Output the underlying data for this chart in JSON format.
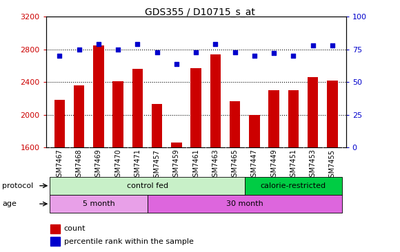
{
  "title": "GDS355 / D10715_s_at",
  "samples": [
    "GSM7467",
    "GSM7468",
    "GSM7469",
    "GSM7470",
    "GSM7471",
    "GSM7457",
    "GSM7459",
    "GSM7461",
    "GSM7463",
    "GSM7465",
    "GSM7447",
    "GSM7449",
    "GSM7451",
    "GSM7453",
    "GSM7455"
  ],
  "counts": [
    2180,
    2360,
    2850,
    2410,
    2560,
    2130,
    1660,
    2570,
    2740,
    2170,
    2000,
    2300,
    2300,
    2460,
    2420
  ],
  "percentiles": [
    70,
    75,
    79,
    75,
    79,
    73,
    64,
    73,
    79,
    73,
    70,
    72,
    70,
    78,
    78
  ],
  "ylim_left": [
    1600,
    3200
  ],
  "ylim_right": [
    0,
    100
  ],
  "yticks_left": [
    1600,
    2000,
    2400,
    2800,
    3200
  ],
  "yticks_right": [
    0,
    25,
    50,
    75,
    100
  ],
  "bar_color": "#cc0000",
  "dot_color": "#0000cc",
  "grid_color": "#000000",
  "plot_bg": "#ffffff",
  "xtick_bg": "#d0d0d0",
  "protocol_control_color": "#c8f0c8",
  "protocol_restricted_color": "#00cc44",
  "age_5month_color": "#e8a0e8",
  "age_30month_color": "#dd66dd",
  "protocol_control_label": "control fed",
  "protocol_restricted_label": "calorie-restricted",
  "age_5month_label": "5 month",
  "age_30month_label": "30 month",
  "protocol_label": "protocol",
  "age_label": "age",
  "legend_count": "count",
  "legend_percentile": "percentile rank within the sample",
  "control_fed_count": 10,
  "age_5month_count": 5,
  "n_samples": 15
}
